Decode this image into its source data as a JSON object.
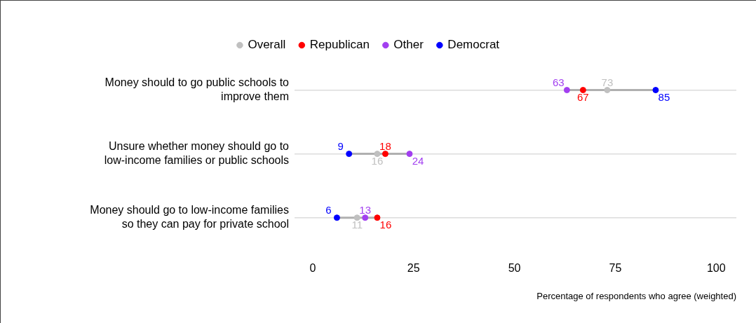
{
  "chart_data": {
    "type": "scatter",
    "orientation": "horizontal",
    "categories": [
      "Money should to go public schools to improve them",
      "Unsure whether money should go to low-income families or public schools",
      "Money should go to low-income families so they can pay for private school"
    ],
    "series": [
      {
        "name": "Overall",
        "color": "#c0c0c0",
        "values": [
          73,
          16,
          11
        ]
      },
      {
        "name": "Republican",
        "color": "#ff0000",
        "values": [
          67,
          18,
          16
        ]
      },
      {
        "name": "Other",
        "color": "#a23ff0",
        "values": [
          63,
          24,
          13
        ]
      },
      {
        "name": "Democrat",
        "color": "#0000ff",
        "values": [
          85,
          9,
          6
        ]
      }
    ],
    "xlim": [
      -4.5,
      105
    ],
    "xticks": [
      0,
      25,
      50,
      75,
      100
    ],
    "xlabel": "Percentage of respondents who agree (weighted)",
    "legend": "top",
    "data_labels": true,
    "grid": "y",
    "marker": "circle"
  }
}
